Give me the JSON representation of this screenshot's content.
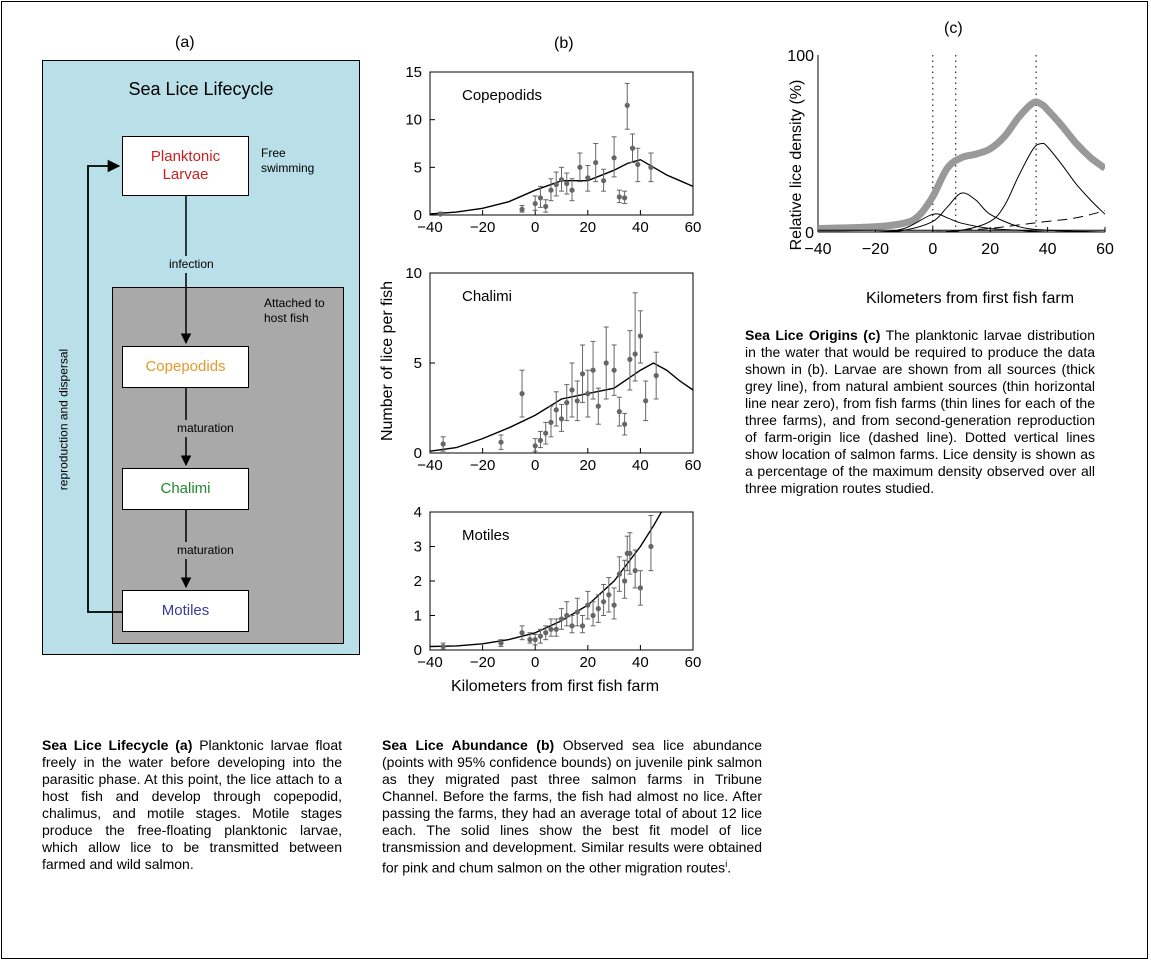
{
  "panel_a": {
    "label": "(a)",
    "title": "Sea Lice Lifecycle",
    "attached_label": "Attached to host fish",
    "free_label": "Free swimming",
    "stages": [
      {
        "name": "Planktonic Larvae",
        "color": "#c82020"
      },
      {
        "name": "Copepodids",
        "color": "#e39a2a"
      },
      {
        "name": "Chalimi",
        "color": "#1e8a2e"
      },
      {
        "name": "Motiles",
        "color": "#3b3b9a"
      }
    ],
    "arrows": {
      "infection": "infection",
      "maturation1": "maturation",
      "maturation2": "maturation",
      "loop": "reproduction and dispersal"
    },
    "colors": {
      "outer": "#b9dfe9",
      "inner": "#a9a9a9"
    }
  },
  "panel_b": {
    "label": "(b)",
    "ylabel": "Number of lice per fish",
    "xlabel": "Kilometers from first fish farm"
  },
  "panel_c": {
    "label": "(c)",
    "ylabel": "Relative lice density (%)",
    "xlabel": "Kilometers from first fish farm"
  },
  "chart_data": [
    {
      "type": "scatter",
      "title": "Copepodids",
      "xlim": [
        -40,
        60
      ],
      "ylim": [
        0,
        15
      ],
      "xticks": [
        -40,
        -20,
        0,
        20,
        40,
        60
      ],
      "yticks": [
        0,
        5,
        10,
        15
      ],
      "points": [
        {
          "x": -36,
          "y": 0.1,
          "lo": 0,
          "hi": 0.3
        },
        {
          "x": -5,
          "y": 0.6,
          "lo": 0.3,
          "hi": 1.0
        },
        {
          "x": 0,
          "y": 1.2,
          "lo": 0.5,
          "hi": 2.0
        },
        {
          "x": 2,
          "y": 1.8,
          "lo": 0.8,
          "hi": 3.0
        },
        {
          "x": 4,
          "y": 0.9,
          "lo": 0.3,
          "hi": 1.6
        },
        {
          "x": 6,
          "y": 2.6,
          "lo": 1.5,
          "hi": 3.8
        },
        {
          "x": 8,
          "y": 3.2,
          "lo": 2.0,
          "hi": 4.5
        },
        {
          "x": 10,
          "y": 3.7,
          "lo": 2.5,
          "hi": 5.0
        },
        {
          "x": 12,
          "y": 3.3,
          "lo": 2.2,
          "hi": 4.4
        },
        {
          "x": 14,
          "y": 2.6,
          "lo": 1.5,
          "hi": 3.8
        },
        {
          "x": 17,
          "y": 5.0,
          "lo": 3.5,
          "hi": 6.5
        },
        {
          "x": 20,
          "y": 3.9,
          "lo": 2.5,
          "hi": 5.2
        },
        {
          "x": 23,
          "y": 5.5,
          "lo": 3.5,
          "hi": 7.5
        },
        {
          "x": 26,
          "y": 3.6,
          "lo": 2.5,
          "hi": 4.8
        },
        {
          "x": 30,
          "y": 6.0,
          "lo": 4.0,
          "hi": 8.2
        },
        {
          "x": 32,
          "y": 1.9,
          "lo": 1.3,
          "hi": 2.6
        },
        {
          "x": 34,
          "y": 1.8,
          "lo": 1.2,
          "hi": 2.5
        },
        {
          "x": 35,
          "y": 11.5,
          "lo": 9.0,
          "hi": 13.8
        },
        {
          "x": 37,
          "y": 7.0,
          "lo": 5.5,
          "hi": 8.5
        },
        {
          "x": 39,
          "y": 5.3,
          "lo": 3.5,
          "hi": 7.0
        },
        {
          "x": 44,
          "y": 5.0,
          "lo": 3.5,
          "hi": 6.5
        }
      ],
      "fit": {
        "x": [
          -40,
          -30,
          -20,
          -10,
          0,
          10,
          20,
          30,
          35,
          40,
          45,
          50,
          55,
          60
        ],
        "y": [
          0.1,
          0.3,
          0.7,
          1.4,
          2.6,
          3.6,
          3.6,
          4.7,
          5.4,
          5.8,
          5.0,
          4.2,
          3.6,
          3.0
        ]
      }
    },
    {
      "type": "scatter",
      "title": "Chalimi",
      "xlim": [
        -40,
        60
      ],
      "ylim": [
        0,
        10
      ],
      "xticks": [
        -40,
        -20,
        0,
        20,
        40,
        60
      ],
      "yticks": [
        0,
        5,
        10
      ],
      "points": [
        {
          "x": -35,
          "y": 0.5,
          "lo": 0.1,
          "hi": 0.9
        },
        {
          "x": -13,
          "y": 0.6,
          "lo": 0.2,
          "hi": 1.0
        },
        {
          "x": -5,
          "y": 3.3,
          "lo": 2.0,
          "hi": 4.6
        },
        {
          "x": 0,
          "y": 0.4,
          "lo": 0.1,
          "hi": 0.8
        },
        {
          "x": 2,
          "y": 0.7,
          "lo": 0.3,
          "hi": 1.2
        },
        {
          "x": 4,
          "y": 1.1,
          "lo": 0.5,
          "hi": 1.7
        },
        {
          "x": 6,
          "y": 1.7,
          "lo": 0.9,
          "hi": 2.6
        },
        {
          "x": 8,
          "y": 2.4,
          "lo": 1.5,
          "hi": 3.4
        },
        {
          "x": 10,
          "y": 1.9,
          "lo": 1.2,
          "hi": 2.7
        },
        {
          "x": 12,
          "y": 2.8,
          "lo": 1.8,
          "hi": 3.8
        },
        {
          "x": 14,
          "y": 3.5,
          "lo": 2.0,
          "hi": 5.0
        },
        {
          "x": 16,
          "y": 2.9,
          "lo": 1.8,
          "hi": 4.0
        },
        {
          "x": 18,
          "y": 4.4,
          "lo": 2.8,
          "hi": 6.0
        },
        {
          "x": 20,
          "y": 3.3,
          "lo": 2.0,
          "hi": 4.6
        },
        {
          "x": 22,
          "y": 4.6,
          "lo": 3.0,
          "hi": 6.2
        },
        {
          "x": 24,
          "y": 2.6,
          "lo": 1.6,
          "hi": 3.6
        },
        {
          "x": 27,
          "y": 5.0,
          "lo": 3.0,
          "hi": 7.0
        },
        {
          "x": 30,
          "y": 4.6,
          "lo": 3.2,
          "hi": 6.0
        },
        {
          "x": 32,
          "y": 2.3,
          "lo": 1.5,
          "hi": 3.1
        },
        {
          "x": 34,
          "y": 1.6,
          "lo": 1.0,
          "hi": 2.2
        },
        {
          "x": 36,
          "y": 5.2,
          "lo": 3.5,
          "hi": 6.8
        },
        {
          "x": 38,
          "y": 5.5,
          "lo": 4.0,
          "hi": 8.9
        },
        {
          "x": 40,
          "y": 6.5,
          "lo": 5.0,
          "hi": 7.9
        },
        {
          "x": 42,
          "y": 2.9,
          "lo": 1.8,
          "hi": 4.0
        },
        {
          "x": 46,
          "y": 4.3,
          "lo": 3.0,
          "hi": 5.6
        }
      ],
      "fit": {
        "x": [
          -40,
          -30,
          -20,
          -10,
          0,
          10,
          20,
          30,
          40,
          45,
          50,
          55,
          60
        ],
        "y": [
          0.1,
          0.3,
          0.8,
          1.4,
          2.1,
          3.0,
          3.3,
          3.6,
          4.6,
          5.0,
          4.6,
          4.0,
          3.5
        ]
      }
    },
    {
      "type": "scatter",
      "title": "Motiles",
      "xlim": [
        -40,
        60
      ],
      "ylim": [
        0,
        4
      ],
      "xticks": [
        -40,
        -20,
        0,
        20,
        40,
        60
      ],
      "yticks": [
        0,
        1,
        2,
        3,
        4
      ],
      "points": [
        {
          "x": -35,
          "y": 0.1,
          "lo": 0.02,
          "hi": 0.2
        },
        {
          "x": -13,
          "y": 0.2,
          "lo": 0.1,
          "hi": 0.3
        },
        {
          "x": -5,
          "y": 0.5,
          "lo": 0.3,
          "hi": 0.7
        },
        {
          "x": -2,
          "y": 0.3,
          "lo": 0.2,
          "hi": 0.5
        },
        {
          "x": 0,
          "y": 0.3,
          "lo": 0.15,
          "hi": 0.45
        },
        {
          "x": 2,
          "y": 0.4,
          "lo": 0.2,
          "hi": 0.6
        },
        {
          "x": 4,
          "y": 0.5,
          "lo": 0.3,
          "hi": 0.7
        },
        {
          "x": 6,
          "y": 0.6,
          "lo": 0.4,
          "hi": 0.9
        },
        {
          "x": 8,
          "y": 0.6,
          "lo": 0.4,
          "hi": 0.9
        },
        {
          "x": 10,
          "y": 0.9,
          "lo": 0.6,
          "hi": 1.2
        },
        {
          "x": 12,
          "y": 1.0,
          "lo": 0.7,
          "hi": 1.4
        },
        {
          "x": 14,
          "y": 0.7,
          "lo": 0.5,
          "hi": 1.0
        },
        {
          "x": 16,
          "y": 1.1,
          "lo": 0.7,
          "hi": 1.5
        },
        {
          "x": 18,
          "y": 0.7,
          "lo": 0.5,
          "hi": 1.0
        },
        {
          "x": 20,
          "y": 1.3,
          "lo": 0.9,
          "hi": 1.7
        },
        {
          "x": 22,
          "y": 1.0,
          "lo": 0.7,
          "hi": 1.4
        },
        {
          "x": 24,
          "y": 1.2,
          "lo": 0.8,
          "hi": 1.6
        },
        {
          "x": 26,
          "y": 1.4,
          "lo": 1.0,
          "hi": 1.9
        },
        {
          "x": 28,
          "y": 1.6,
          "lo": 1.1,
          "hi": 2.1
        },
        {
          "x": 30,
          "y": 1.3,
          "lo": 0.9,
          "hi": 1.8
        },
        {
          "x": 32,
          "y": 2.2,
          "lo": 1.7,
          "hi": 2.7
        },
        {
          "x": 34,
          "y": 2.0,
          "lo": 1.5,
          "hi": 2.6
        },
        {
          "x": 35,
          "y": 2.8,
          "lo": 2.3,
          "hi": 3.3
        },
        {
          "x": 36,
          "y": 2.8,
          "lo": 2.2,
          "hi": 3.4
        },
        {
          "x": 38,
          "y": 2.3,
          "lo": 1.8,
          "hi": 2.9
        },
        {
          "x": 40,
          "y": 1.8,
          "lo": 1.3,
          "hi": 2.3
        },
        {
          "x": 44,
          "y": 3.0,
          "lo": 2.3,
          "hi": 3.9
        }
      ],
      "fit": {
        "x": [
          -40,
          -30,
          -20,
          -10,
          0,
          10,
          20,
          30,
          40,
          45,
          48
        ],
        "y": [
          0.1,
          0.12,
          0.18,
          0.3,
          0.5,
          0.85,
          1.3,
          2.0,
          3.0,
          3.6,
          4.0
        ]
      }
    },
    {
      "type": "line",
      "xlim": [
        -40,
        60
      ],
      "ylim": [
        0,
        100
      ],
      "xticks": [
        -40,
        -20,
        0,
        20,
        40,
        60
      ],
      "yticks": [
        0,
        100
      ],
      "farm_locations_km": [
        0,
        8,
        36
      ],
      "series": [
        {
          "style": "thick-grey",
          "x": [
            -40,
            -20,
            -10,
            -5,
            0,
            5,
            10,
            15,
            20,
            25,
            30,
            35,
            38,
            40,
            45,
            50,
            55,
            60
          ],
          "y": [
            2,
            3,
            5,
            9,
            20,
            36,
            42,
            44,
            47,
            54,
            65,
            73,
            72,
            69,
            60,
            50,
            42,
            36
          ]
        },
        {
          "style": "thin",
          "x": [
            -40,
            -20,
            -10,
            0,
            5,
            10,
            15,
            20,
            30,
            40,
            60
          ],
          "y": [
            0,
            0,
            1,
            6,
            14,
            22,
            18,
            10,
            3,
            1,
            0
          ]
        },
        {
          "style": "thin",
          "x": [
            -40,
            -20,
            -10,
            0,
            5,
            10,
            20,
            30,
            40,
            60
          ],
          "y": [
            0,
            0,
            2,
            10,
            8,
            5,
            2,
            1,
            0,
            0
          ]
        },
        {
          "style": "thin",
          "x": [
            -40,
            0,
            10,
            20,
            25,
            30,
            35,
            38,
            40,
            45,
            50,
            55,
            60
          ],
          "y": [
            0,
            0,
            1,
            6,
            15,
            32,
            47,
            50,
            48,
            38,
            27,
            18,
            10
          ]
        },
        {
          "style": "thin",
          "x": [
            -40,
            0,
            20,
            40,
            60
          ],
          "y": [
            1,
            1,
            1,
            1,
            1
          ]
        },
        {
          "style": "dashed",
          "x": [
            -40,
            0,
            10,
            20,
            30,
            40,
            50,
            60
          ],
          "y": [
            0,
            0,
            1,
            2,
            4,
            6,
            8,
            12
          ]
        }
      ]
    }
  ],
  "captions": {
    "c_bold": "Sea Lice Origins (c)",
    "c_text": " The planktonic larvae distribution in the water that would be required to produce the data shown in (b). Larvae are shown from all sources (thick grey line), from natural ambient sources (thin horizontal line near zero), from fish farms (thin lines for each of the three farms), and from second-generation reproduction of farm-origin lice (dashed line). Dotted vertical lines show location of salmon farms. Lice density is shown as a percentage of the maximum density observed over all three migration routes studied.",
    "a_bold": "Sea Lice Lifecycle (a)",
    "a_text": " Planktonic larvae float freely in the water before developing into the parasitic phase. At this point, the lice attach to a host fish and develop through copepodid, chalimus, and motile stages. Motile stages produce the free-floating planktonic larvae, which allow lice to be transmitted between farmed and wild salmon.",
    "b_bold": "Sea Lice Abundance (b)",
    "b_text": " Observed sea lice abundance (points with 95% confidence bounds) on juvenile pink salmon as they migrated past three salmon farms in Tribune Channel. Before the farms, the fish had almost no lice. After passing the farms, they had an average total of about 12 lice each. The solid lines show the best fit model of lice transmission and development. Similar results were obtained for pink and chum salmon on the other migration routes",
    "b_sup": "i",
    "b_end": "."
  }
}
